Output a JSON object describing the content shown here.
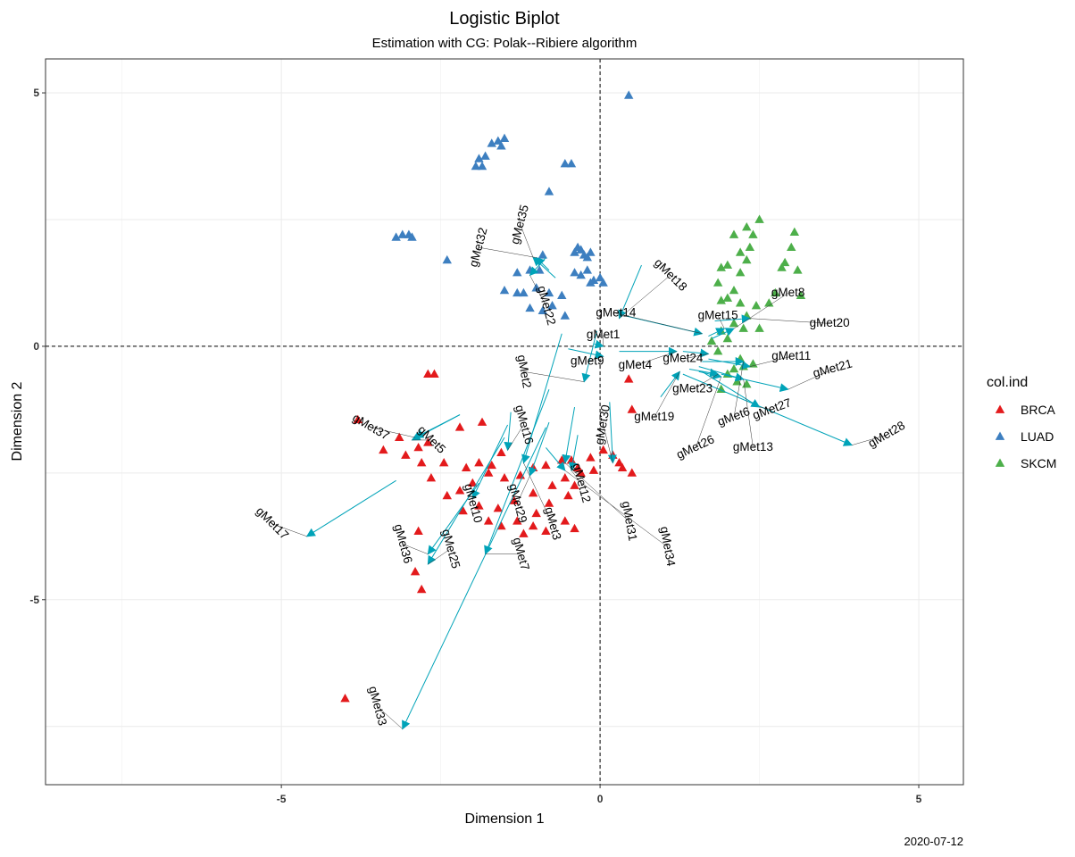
{
  "chart_data": {
    "type": "scatter",
    "title": "Logistic Biplot",
    "subtitle": "Estimation with CG: Polak--Ribiere algorithm",
    "xlabel": "Dimension 1",
    "ylabel": "Dimension 2",
    "xlim": [
      -8.7,
      5.7
    ],
    "ylim": [
      -8.65,
      5.67
    ],
    "x_ticks": [
      -5,
      0,
      5
    ],
    "y_ticks": [
      -5,
      0,
      5
    ],
    "x_tick_labels": [
      "-5",
      "0",
      "5"
    ],
    "y_tick_labels": [
      "-5",
      "0",
      "5"
    ],
    "grid": true,
    "reference_lines": {
      "x": 0,
      "y": 0,
      "style": "dashed"
    },
    "caption": "2020-07-12",
    "legend": {
      "title": "col.ind",
      "position": "right",
      "entries": [
        {
          "label": "BRCA",
          "color": "#e31a1c"
        },
        {
          "label": "LUAD",
          "color": "#3d7fc0"
        },
        {
          "label": "SKCM",
          "color": "#4daf4a"
        }
      ]
    },
    "series": [
      {
        "name": "BRCA",
        "color": "#e31a1c",
        "points": [
          [
            -2.7,
            -0.55
          ],
          [
            -2.6,
            -0.55
          ],
          [
            -3.8,
            -1.45
          ],
          [
            -3.15,
            -1.8
          ],
          [
            -2.85,
            -2.0
          ],
          [
            -2.7,
            -1.9
          ],
          [
            -2.2,
            -1.6
          ],
          [
            -1.85,
            -1.5
          ],
          [
            -3.4,
            -2.05
          ],
          [
            -3.05,
            -2.15
          ],
          [
            -2.8,
            -2.3
          ],
          [
            -2.45,
            -2.3
          ],
          [
            -2.1,
            -2.4
          ],
          [
            -1.9,
            -2.3
          ],
          [
            -1.7,
            -2.35
          ],
          [
            -1.55,
            -2.1
          ],
          [
            -2.65,
            -2.6
          ],
          [
            -2.4,
            -2.95
          ],
          [
            -2.2,
            -2.85
          ],
          [
            -2.0,
            -2.7
          ],
          [
            -1.75,
            -2.5
          ],
          [
            -1.5,
            -2.6
          ],
          [
            -1.25,
            -2.55
          ],
          [
            -1.05,
            -2.4
          ],
          [
            -0.85,
            -2.35
          ],
          [
            -0.6,
            -2.25
          ],
          [
            -0.35,
            -2.4
          ],
          [
            -0.15,
            -2.2
          ],
          [
            0.05,
            -2.05
          ],
          [
            0.2,
            -2.15
          ],
          [
            0.35,
            -2.4
          ],
          [
            0.5,
            -2.5
          ],
          [
            -0.3,
            -2.5
          ],
          [
            -0.55,
            -2.6
          ],
          [
            -0.75,
            -2.75
          ],
          [
            -1.05,
            -2.9
          ],
          [
            -1.35,
            -3.05
          ],
          [
            -1.6,
            -3.2
          ],
          [
            -1.9,
            -3.15
          ],
          [
            -2.15,
            -3.25
          ],
          [
            -0.4,
            -2.75
          ],
          [
            -0.5,
            -2.95
          ],
          [
            -0.8,
            -3.1
          ],
          [
            -1.0,
            -3.3
          ],
          [
            -1.3,
            -3.45
          ],
          [
            -1.55,
            -3.55
          ],
          [
            -1.75,
            -3.45
          ],
          [
            -1.05,
            -3.55
          ],
          [
            -0.55,
            -3.45
          ],
          [
            -0.4,
            -3.6
          ],
          [
            -0.85,
            -3.65
          ],
          [
            -1.2,
            -3.7
          ],
          [
            -2.85,
            -3.65
          ],
          [
            -2.9,
            -4.45
          ],
          [
            -2.8,
            -4.8
          ],
          [
            0.45,
            -0.65
          ],
          [
            0.5,
            -1.25
          ],
          [
            -4.0,
            -6.95
          ],
          [
            -0.1,
            -2.45
          ],
          [
            -0.45,
            -2.25
          ],
          [
            0.3,
            -2.3
          ]
        ]
      },
      {
        "name": "LUAD",
        "color": "#3d7fc0",
        "points": [
          [
            0.45,
            4.95
          ],
          [
            -1.6,
            4.05
          ],
          [
            -1.5,
            4.1
          ],
          [
            -1.55,
            3.95
          ],
          [
            -1.7,
            4.0
          ],
          [
            -1.8,
            3.75
          ],
          [
            -1.9,
            3.7
          ],
          [
            -1.85,
            3.55
          ],
          [
            -1.95,
            3.55
          ],
          [
            -0.55,
            3.6
          ],
          [
            -0.45,
            3.6
          ],
          [
            -0.8,
            3.05
          ],
          [
            -3.2,
            2.15
          ],
          [
            -3.1,
            2.2
          ],
          [
            -3.0,
            2.2
          ],
          [
            -2.95,
            2.15
          ],
          [
            -2.4,
            1.7
          ],
          [
            -0.3,
            1.9
          ],
          [
            -0.4,
            1.85
          ],
          [
            -0.25,
            1.8
          ],
          [
            -0.35,
            1.95
          ],
          [
            -0.15,
            1.85
          ],
          [
            -0.2,
            1.75
          ],
          [
            -0.4,
            1.45
          ],
          [
            -0.3,
            1.4
          ],
          [
            -0.2,
            1.5
          ],
          [
            -0.1,
            1.3
          ],
          [
            0.0,
            1.35
          ],
          [
            0.05,
            1.25
          ],
          [
            -0.15,
            1.25
          ],
          [
            -1.5,
            1.1
          ],
          [
            -1.3,
            1.05
          ],
          [
            -1.2,
            1.05
          ],
          [
            -1.0,
            1.15
          ],
          [
            -0.8,
            1.05
          ],
          [
            -0.6,
            1.0
          ],
          [
            -0.75,
            0.8
          ],
          [
            -0.55,
            0.6
          ],
          [
            -0.9,
            0.7
          ],
          [
            -1.1,
            0.75
          ],
          [
            -1.3,
            1.45
          ],
          [
            -1.1,
            1.5
          ],
          [
            -0.9,
            1.8
          ],
          [
            -0.95,
            1.5
          ]
        ]
      },
      {
        "name": "SKCM",
        "color": "#4daf4a",
        "points": [
          [
            2.5,
            2.5
          ],
          [
            2.3,
            2.35
          ],
          [
            2.1,
            2.2
          ],
          [
            2.4,
            2.2
          ],
          [
            3.05,
            2.25
          ],
          [
            3.0,
            1.95
          ],
          [
            2.35,
            1.95
          ],
          [
            2.2,
            1.85
          ],
          [
            2.3,
            1.7
          ],
          [
            2.9,
            1.65
          ],
          [
            2.85,
            1.55
          ],
          [
            3.1,
            1.5
          ],
          [
            2.0,
            1.6
          ],
          [
            1.9,
            1.55
          ],
          [
            2.2,
            1.45
          ],
          [
            1.85,
            1.25
          ],
          [
            2.1,
            1.1
          ],
          [
            2.0,
            0.95
          ],
          [
            1.9,
            0.9
          ],
          [
            2.2,
            0.85
          ],
          [
            2.45,
            0.8
          ],
          [
            2.65,
            0.85
          ],
          [
            2.75,
            1.05
          ],
          [
            3.15,
            1.0
          ],
          [
            2.3,
            0.6
          ],
          [
            2.1,
            0.45
          ],
          [
            2.25,
            0.35
          ],
          [
            2.5,
            0.35
          ],
          [
            1.9,
            0.3
          ],
          [
            2.0,
            0.15
          ],
          [
            1.75,
            0.1
          ],
          [
            1.85,
            -0.1
          ],
          [
            2.2,
            -0.25
          ],
          [
            2.4,
            -0.35
          ],
          [
            2.25,
            -0.4
          ],
          [
            2.0,
            -0.55
          ],
          [
            2.15,
            -0.7
          ],
          [
            1.9,
            -0.85
          ],
          [
            2.3,
            -0.75
          ],
          [
            2.1,
            -0.45
          ]
        ]
      }
    ],
    "variables": [
      {
        "name": "gMet1",
        "tail": [
          -0.1,
          0.05
        ],
        "head": [
          0.05,
          0.0
        ]
      },
      {
        "name": "gMet2",
        "tail": [
          -0.05,
          0.3
        ],
        "head": [
          -0.25,
          -0.7
        ]
      },
      {
        "name": "gMet3",
        "tail": [
          -0.6,
          0.25
        ],
        "head": [
          -1.2,
          -2.3
        ]
      },
      {
        "name": "gMet4",
        "tail": [
          0.3,
          -0.1
        ],
        "head": [
          1.2,
          -0.1
        ]
      },
      {
        "name": "gMet5",
        "tail": [
          -2.2,
          -1.35
        ],
        "head": [
          -2.95,
          -1.85
        ]
      },
      {
        "name": "gMet6",
        "tail": [
          1.6,
          -0.3
        ],
        "head": [
          2.25,
          -0.3
        ]
      },
      {
        "name": "gMet7",
        "tail": [
          -0.8,
          -0.85
        ],
        "head": [
          -1.8,
          -4.1
        ]
      },
      {
        "name": "gMet8",
        "tail": [
          1.75,
          0.15
        ],
        "head": [
          2.1,
          0.35
        ]
      },
      {
        "name": "gMet9",
        "tail": [
          -0.5,
          -0.05
        ],
        "head": [
          0.05,
          -0.2
        ]
      },
      {
        "name": "gMet10",
        "tail": [
          -1.45,
          -1.55
        ],
        "head": [
          -2.0,
          -3.0
        ]
      },
      {
        "name": "gMet11",
        "tail": [
          1.7,
          -0.25
        ],
        "head": [
          2.35,
          -0.4
        ]
      },
      {
        "name": "gMet12",
        "tail": [
          -0.35,
          -1.75
        ],
        "head": [
          -0.45,
          -2.45
        ]
      },
      {
        "name": "gMet13",
        "tail": [
          1.55,
          -0.4
        ],
        "head": [
          2.25,
          -0.65
        ]
      },
      {
        "name": "gMet14",
        "tail": [
          0.4,
          0.6
        ],
        "head": [
          1.6,
          0.25
        ]
      },
      {
        "name": "gMet15",
        "tail": [
          1.7,
          0.2
        ],
        "head": [
          1.95,
          0.35
        ]
      },
      {
        "name": "gMet16",
        "tail": [
          -1.4,
          -1.3
        ],
        "head": [
          -1.45,
          -2.05
        ]
      },
      {
        "name": "gMet17",
        "tail": [
          -3.2,
          -2.65
        ],
        "head": [
          -4.6,
          -3.75
        ]
      },
      {
        "name": "gMet18",
        "tail": [
          0.65,
          1.6
        ],
        "head": [
          0.3,
          0.55
        ]
      },
      {
        "name": "gMet19",
        "tail": [
          0.95,
          -1.0
        ],
        "head": [
          1.25,
          -0.5
        ]
      },
      {
        "name": "gMet20",
        "tail": [
          1.8,
          0.5
        ],
        "head": [
          2.35,
          0.55
        ]
      },
      {
        "name": "gMet21",
        "tail": [
          1.9,
          -0.55
        ],
        "head": [
          2.95,
          -0.85
        ]
      },
      {
        "name": "gMet22",
        "tail": [
          -0.85,
          1.75
        ],
        "head": [
          -1.1,
          1.4
        ]
      },
      {
        "name": "gMet23",
        "tail": [
          1.4,
          -0.45
        ],
        "head": [
          1.85,
          -0.55
        ]
      },
      {
        "name": "gMet24",
        "tail": [
          1.3,
          -0.1
        ],
        "head": [
          1.7,
          -0.15
        ]
      },
      {
        "name": "gMet25",
        "tail": [
          -1.5,
          -1.8
        ],
        "head": [
          -2.7,
          -4.3
        ]
      },
      {
        "name": "gMet26",
        "tail": [
          1.55,
          -0.5
        ],
        "head": [
          1.9,
          -0.6
        ]
      },
      {
        "name": "gMet27",
        "tail": [
          1.6,
          -0.5
        ],
        "head": [
          2.5,
          -1.2
        ]
      },
      {
        "name": "gMet28",
        "tail": [
          1.3,
          -0.55
        ],
        "head": [
          3.95,
          -1.95
        ]
      },
      {
        "name": "gMet29",
        "tail": [
          -0.8,
          -1.5
        ],
        "head": [
          -1.1,
          -2.55
        ]
      },
      {
        "name": "gMet30",
        "tail": [
          0.15,
          -1.1
        ],
        "head": [
          0.2,
          -2.3
        ]
      },
      {
        "name": "gMet31",
        "tail": [
          -0.4,
          -1.2
        ],
        "head": [
          -0.55,
          -2.3
        ]
      },
      {
        "name": "gMet32",
        "tail": [
          -0.8,
          1.5
        ],
        "head": [
          -1.0,
          1.75
        ]
      },
      {
        "name": "gMet33",
        "tail": [
          -0.85,
          -1.6
        ],
        "head": [
          -3.1,
          -7.55
        ]
      },
      {
        "name": "gMet34",
        "tail": [
          -0.85,
          -2.0
        ],
        "head": [
          -0.55,
          -2.45
        ]
      },
      {
        "name": "gMet35",
        "tail": [
          -0.7,
          1.35
        ],
        "head": [
          -1.05,
          1.75
        ]
      },
      {
        "name": "gMet36",
        "tail": [
          -1.9,
          -2.7
        ],
        "head": [
          -2.7,
          -4.1
        ]
      },
      {
        "name": "gMet37",
        "tail": [
          -2.2,
          -1.35
        ],
        "head": [
          -2.9,
          -1.8
        ]
      }
    ],
    "variable_labels": [
      {
        "name": "gMet1",
        "x": 0.05,
        "y": 0.22,
        "angle": 0
      },
      {
        "name": "gMet2",
        "x": -1.2,
        "y": -0.5,
        "angle": -80
      },
      {
        "name": "gMet3",
        "x": -0.75,
        "y": -3.5,
        "angle": -75
      },
      {
        "name": "gMet4",
        "x": 0.55,
        "y": -0.38,
        "angle": 0
      },
      {
        "name": "gMet5",
        "x": -2.65,
        "y": -1.85,
        "angle": -45
      },
      {
        "name": "gMet6",
        "x": 2.1,
        "y": -1.4,
        "angle": 20
      },
      {
        "name": "gMet7",
        "x": -1.25,
        "y": -4.1,
        "angle": -75
      },
      {
        "name": "gMet8",
        "x": 2.95,
        "y": 1.05,
        "angle": 0
      },
      {
        "name": "gMet9",
        "x": -0.2,
        "y": -0.3,
        "angle": 0
      },
      {
        "name": "gMet10",
        "x": -2.0,
        "y": -3.1,
        "angle": -75
      },
      {
        "name": "gMet11",
        "x": 3.0,
        "y": -0.2,
        "angle": 0
      },
      {
        "name": "gMet12",
        "x": -0.3,
        "y": -2.7,
        "angle": -75
      },
      {
        "name": "gMet13",
        "x": 2.4,
        "y": -2.0,
        "angle": 0
      },
      {
        "name": "gMet14",
        "x": 0.25,
        "y": 0.65,
        "angle": 0
      },
      {
        "name": "gMet15",
        "x": 1.85,
        "y": 0.6,
        "angle": 0
      },
      {
        "name": "gMet16",
        "x": -1.2,
        "y": -1.55,
        "angle": -75
      },
      {
        "name": "gMet17",
        "x": -5.15,
        "y": -3.5,
        "angle": -45
      },
      {
        "name": "gMet18",
        "x": 1.1,
        "y": 1.4,
        "angle": -45
      },
      {
        "name": "gMet19",
        "x": 0.85,
        "y": -1.4,
        "angle": 0
      },
      {
        "name": "gMet20",
        "x": 3.6,
        "y": 0.45,
        "angle": 0
      },
      {
        "name": "gMet21",
        "x": 3.65,
        "y": -0.45,
        "angle": 15
      },
      {
        "name": "gMet22",
        "x": -0.85,
        "y": 0.8,
        "angle": -75
      },
      {
        "name": "gMet23",
        "x": 1.45,
        "y": -0.85,
        "angle": 0
      },
      {
        "name": "gMet24",
        "x": 1.3,
        "y": -0.25,
        "angle": 0
      },
      {
        "name": "gMet25",
        "x": -2.35,
        "y": -4.0,
        "angle": -75
      },
      {
        "name": "gMet26",
        "x": 1.5,
        "y": -2.0,
        "angle": 25
      },
      {
        "name": "gMet27",
        "x": 2.7,
        "y": -1.25,
        "angle": 20
      },
      {
        "name": "gMet28",
        "x": 4.5,
        "y": -1.75,
        "angle": 30
      },
      {
        "name": "gMet29",
        "x": -1.3,
        "y": -3.1,
        "angle": -75
      },
      {
        "name": "gMet30",
        "x": 0.05,
        "y": -1.55,
        "angle": 80
      },
      {
        "name": "gMet31",
        "x": 0.45,
        "y": -3.45,
        "angle": -80
      },
      {
        "name": "gMet32",
        "x": -1.9,
        "y": 1.95,
        "angle": 75
      },
      {
        "name": "gMet33",
        "x": -3.5,
        "y": -7.1,
        "angle": -75
      },
      {
        "name": "gMet34",
        "x": 1.05,
        "y": -3.95,
        "angle": -80
      },
      {
        "name": "gMet35",
        "x": -1.25,
        "y": 2.4,
        "angle": 75
      },
      {
        "name": "gMet36",
        "x": -3.1,
        "y": -3.9,
        "angle": -75
      },
      {
        "name": "gMet37",
        "x": -3.6,
        "y": -1.6,
        "angle": -30
      }
    ]
  }
}
